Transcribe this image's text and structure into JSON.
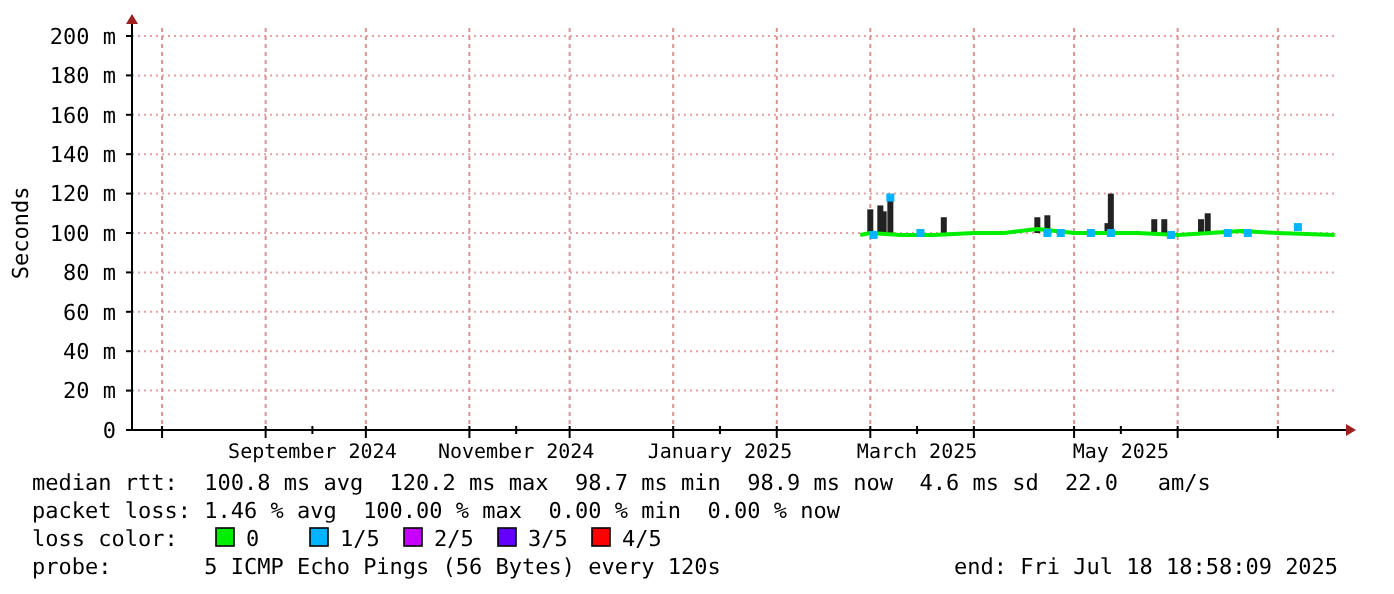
{
  "chart_data": {
    "type": "line",
    "ylabel": "Seconds",
    "xlim": [
      "2024-07-23",
      "2025-07-19"
    ],
    "xticks": [
      {
        "value": "2024-08-01",
        "label": null
      },
      {
        "value": "2024-09-01",
        "label": null
      },
      {
        "value": "2024-09-15",
        "label": "September 2024"
      },
      {
        "value": "2024-10-01",
        "label": null
      },
      {
        "value": "2024-11-01",
        "label": null
      },
      {
        "value": "2024-11-15",
        "label": "November 2024"
      },
      {
        "value": "2024-12-01",
        "label": null
      },
      {
        "value": "2025-01-01",
        "label": null
      },
      {
        "value": "2025-01-15",
        "label": "January 2025"
      },
      {
        "value": "2025-02-01",
        "label": null
      },
      {
        "value": "2025-03-01",
        "label": null
      },
      {
        "value": "2025-03-15",
        "label": "March 2025"
      },
      {
        "value": "2025-04-01",
        "label": null
      },
      {
        "value": "2025-05-01",
        "label": null
      },
      {
        "value": "2025-05-15",
        "label": "May 2025"
      },
      {
        "value": "2025-06-01",
        "label": null
      },
      {
        "value": "2025-07-01",
        "label": null
      }
    ],
    "ylim": [
      0,
      200
    ],
    "yticks": [
      0,
      {
        "value": 20,
        "label": "20 m"
      },
      {
        "value": 40,
        "label": "40 m"
      },
      {
        "value": 60,
        "label": "60 m"
      },
      {
        "value": 80,
        "label": "80 m"
      },
      {
        "value": 100,
        "label": "100 m"
      },
      {
        "value": 120,
        "label": "120 m"
      },
      {
        "value": 140,
        "label": "140 m"
      },
      {
        "value": 160,
        "label": "160 m"
      },
      {
        "value": 180,
        "label": "180 m"
      },
      {
        "value": 200,
        "label": "200 m"
      }
    ],
    "grid": true,
    "legend": "bottom",
    "legend_title": "loss color:",
    "series": [
      {
        "type": "bar",
        "color": "#222222",
        "x": [
          "2025-03-01",
          "2025-03-04",
          "2025-03-05",
          "2025-03-07",
          "2025-03-23",
          "2025-04-20",
          "2025-04-23",
          "2025-05-11",
          "2025-05-12",
          "2025-05-25",
          "2025-05-28",
          "2025-06-08",
          "2025-06-10"
        ],
        "base": [
          99,
          99,
          99,
          99,
          99,
          100,
          100,
          100,
          100,
          99,
          99,
          100,
          100
        ],
        "values": [
          13,
          15,
          12,
          19,
          9,
          8,
          9,
          5,
          20,
          8,
          8,
          7,
          10
        ]
      },
      {
        "name": "0",
        "color": "#00ee00",
        "x": [
          "2025-02-26",
          "2025-03-01",
          "2025-03-10",
          "2025-03-20",
          "2025-04-01",
          "2025-04-10",
          "2025-04-20",
          "2025-05-01",
          "2025-05-20",
          "2025-06-01",
          "2025-06-20",
          "2025-07-01",
          "2025-07-18"
        ],
        "values": [
          99,
          100,
          99,
          99,
          100,
          100,
          102,
          100,
          100,
          99,
          101,
          100,
          99
        ]
      },
      {
        "name": "1/5",
        "type": "scatter",
        "color": "#00b4ff",
        "marker": "square",
        "x": [
          "2025-03-02",
          "2025-03-07",
          "2025-03-16",
          "2025-04-23",
          "2025-04-27",
          "2025-05-06",
          "2025-05-12",
          "2025-05-30",
          "2025-06-16",
          "2025-06-22",
          "2025-07-07"
        ],
        "values": [
          99,
          118,
          100,
          100,
          100,
          100,
          100,
          99,
          100,
          100,
          103
        ]
      },
      {
        "name": "2/5",
        "color": "#c800ff"
      },
      {
        "name": "3/5",
        "color": "#6400ff"
      },
      {
        "name": "4/5",
        "color": "#ff0000"
      }
    ],
    "annotations": [
      "median rtt:  100.8 ms avg  120.2 ms max  98.7 ms min  98.9 ms now  4.6 ms sd  22.0   am/s",
      "packet loss: 1.46 % avg  100.00 % max  0.00 % min  0.00 % now",
      "probe:       5 ICMP Echo Pings (56 Bytes) every 120s",
      "end: Fri Jul 18 18:58:09 2025"
    ]
  }
}
